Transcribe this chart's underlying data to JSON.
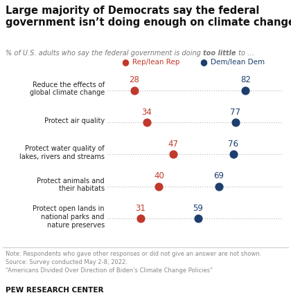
{
  "title_line1": "Large majority of Democrats say the federal",
  "title_line2": "government isn’t doing enough on climate change",
  "subtitle_plain": "% of U.S. adults who say the federal government is doing ",
  "subtitle_bold": "too little",
  "subtitle_end": " to …",
  "categories": [
    "Reduce the effects of\nglobal climate change",
    "Protect air quality",
    "Protect water quality of\nlakes, rivers and streams",
    "Protect animals and\ntheir habitats",
    "Protect open lands in\nnational parks and\nnature preserves"
  ],
  "rep_values": [
    28,
    34,
    47,
    40,
    31
  ],
  "dem_values": [
    82,
    77,
    76,
    69,
    59
  ],
  "rep_color": "#C0392B",
  "dem_color": "#1C3F6E",
  "rep_label": "Rep/lean Rep",
  "dem_label": "Dem/lean Dem",
  "note_line1": "Note: Respondents who gave other responses or did not give an answer are not shown.",
  "note_line2": "Source: Survey conducted May 2-8, 2022.",
  "note_line3": "“Americans Divided Over Direction of Biden’s Climate Change Policies”",
  "source_label": "PEW RESEARCH CENTER",
  "xlim_left": 15,
  "xlim_right": 100,
  "background_color": "#ffffff"
}
